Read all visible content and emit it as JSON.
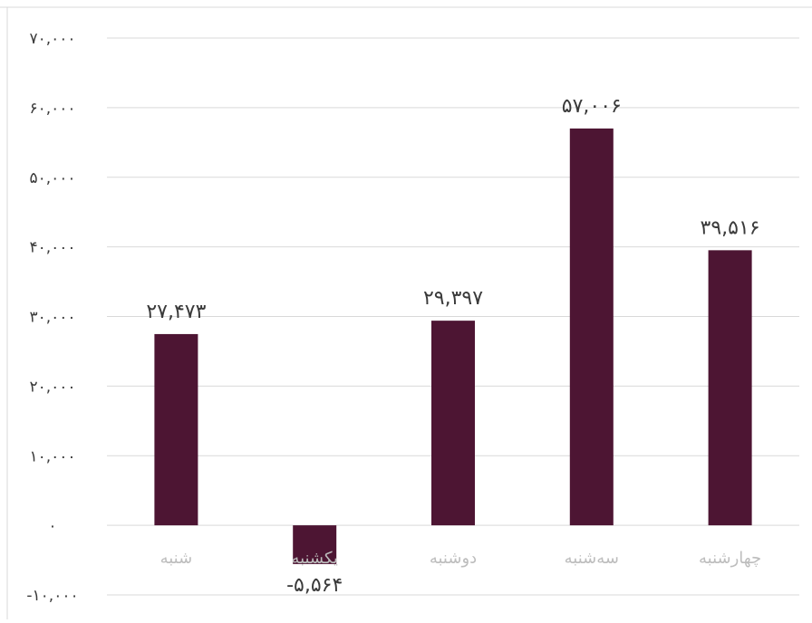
{
  "chart_data": {
    "type": "bar",
    "categories": [
      "شنبه",
      "یکشنبه",
      "دوشنبه",
      "سه‌شنبه",
      "چهارشنبه"
    ],
    "values": [
      27473,
      -5564,
      29397,
      57006,
      39516
    ],
    "data_labels": [
      "۲۷,۴۷۳",
      "-۵,۵۶۴",
      "۲۹,۳۹۷",
      "۵۷,۰۰۶",
      "۳۹,۵۱۶"
    ],
    "y_ticks": [
      -10000,
      0,
      10000,
      20000,
      30000,
      40000,
      50000,
      60000,
      70000
    ],
    "y_tick_labels": [
      "-۱۰,۰۰۰",
      "۰",
      "۱۰,۰۰۰",
      "۲۰,۰۰۰",
      "۳۰,۰۰۰",
      "۴۰,۰۰۰",
      "۵۰,۰۰۰",
      "۶۰,۰۰۰",
      "۷۰,۰۰۰"
    ],
    "ylim": [
      -10000,
      70000
    ],
    "grid": true,
    "bar_color": "#4d1533",
    "title": "",
    "xlabel": "",
    "ylabel": ""
  }
}
